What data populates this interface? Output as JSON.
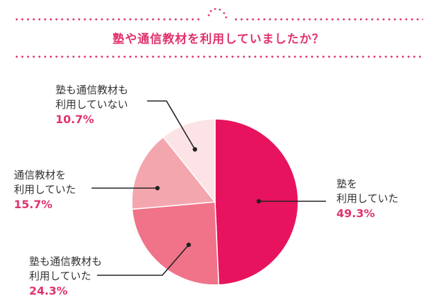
{
  "title": "塾や通信教材を利用していましたか？",
  "colors": {
    "accent": "#e0336e",
    "slice_1": "#e8135e",
    "slice_2": "#f07389",
    "slice_3": "#f4a6ae",
    "slice_4": "#fce3e5"
  },
  "labels": [
    {
      "line1": "塾を",
      "line2": "利用していた",
      "pct": "49.3%"
    },
    {
      "line1": "塾も通信教材も",
      "line2": "利用していた",
      "pct": "24.3%"
    },
    {
      "line1": "通信教材を",
      "line2": "利用していた",
      "pct": "15.7%"
    },
    {
      "line1": "塾も通信教材も",
      "line2": "利用していない",
      "pct": "10.7%"
    }
  ],
  "chart_data": {
    "type": "pie",
    "title": "塾や通信教材を利用していましたか？",
    "categories": [
      "塾を利用していた",
      "塾も通信教材も利用していた",
      "通信教材を利用していた",
      "塾も通信教材も利用していない"
    ],
    "values": [
      49.3,
      24.3,
      15.7,
      10.7
    ],
    "unit": "%",
    "start_angle": "12 o'clock, clockwise",
    "legend": "callout labels with leader lines"
  }
}
